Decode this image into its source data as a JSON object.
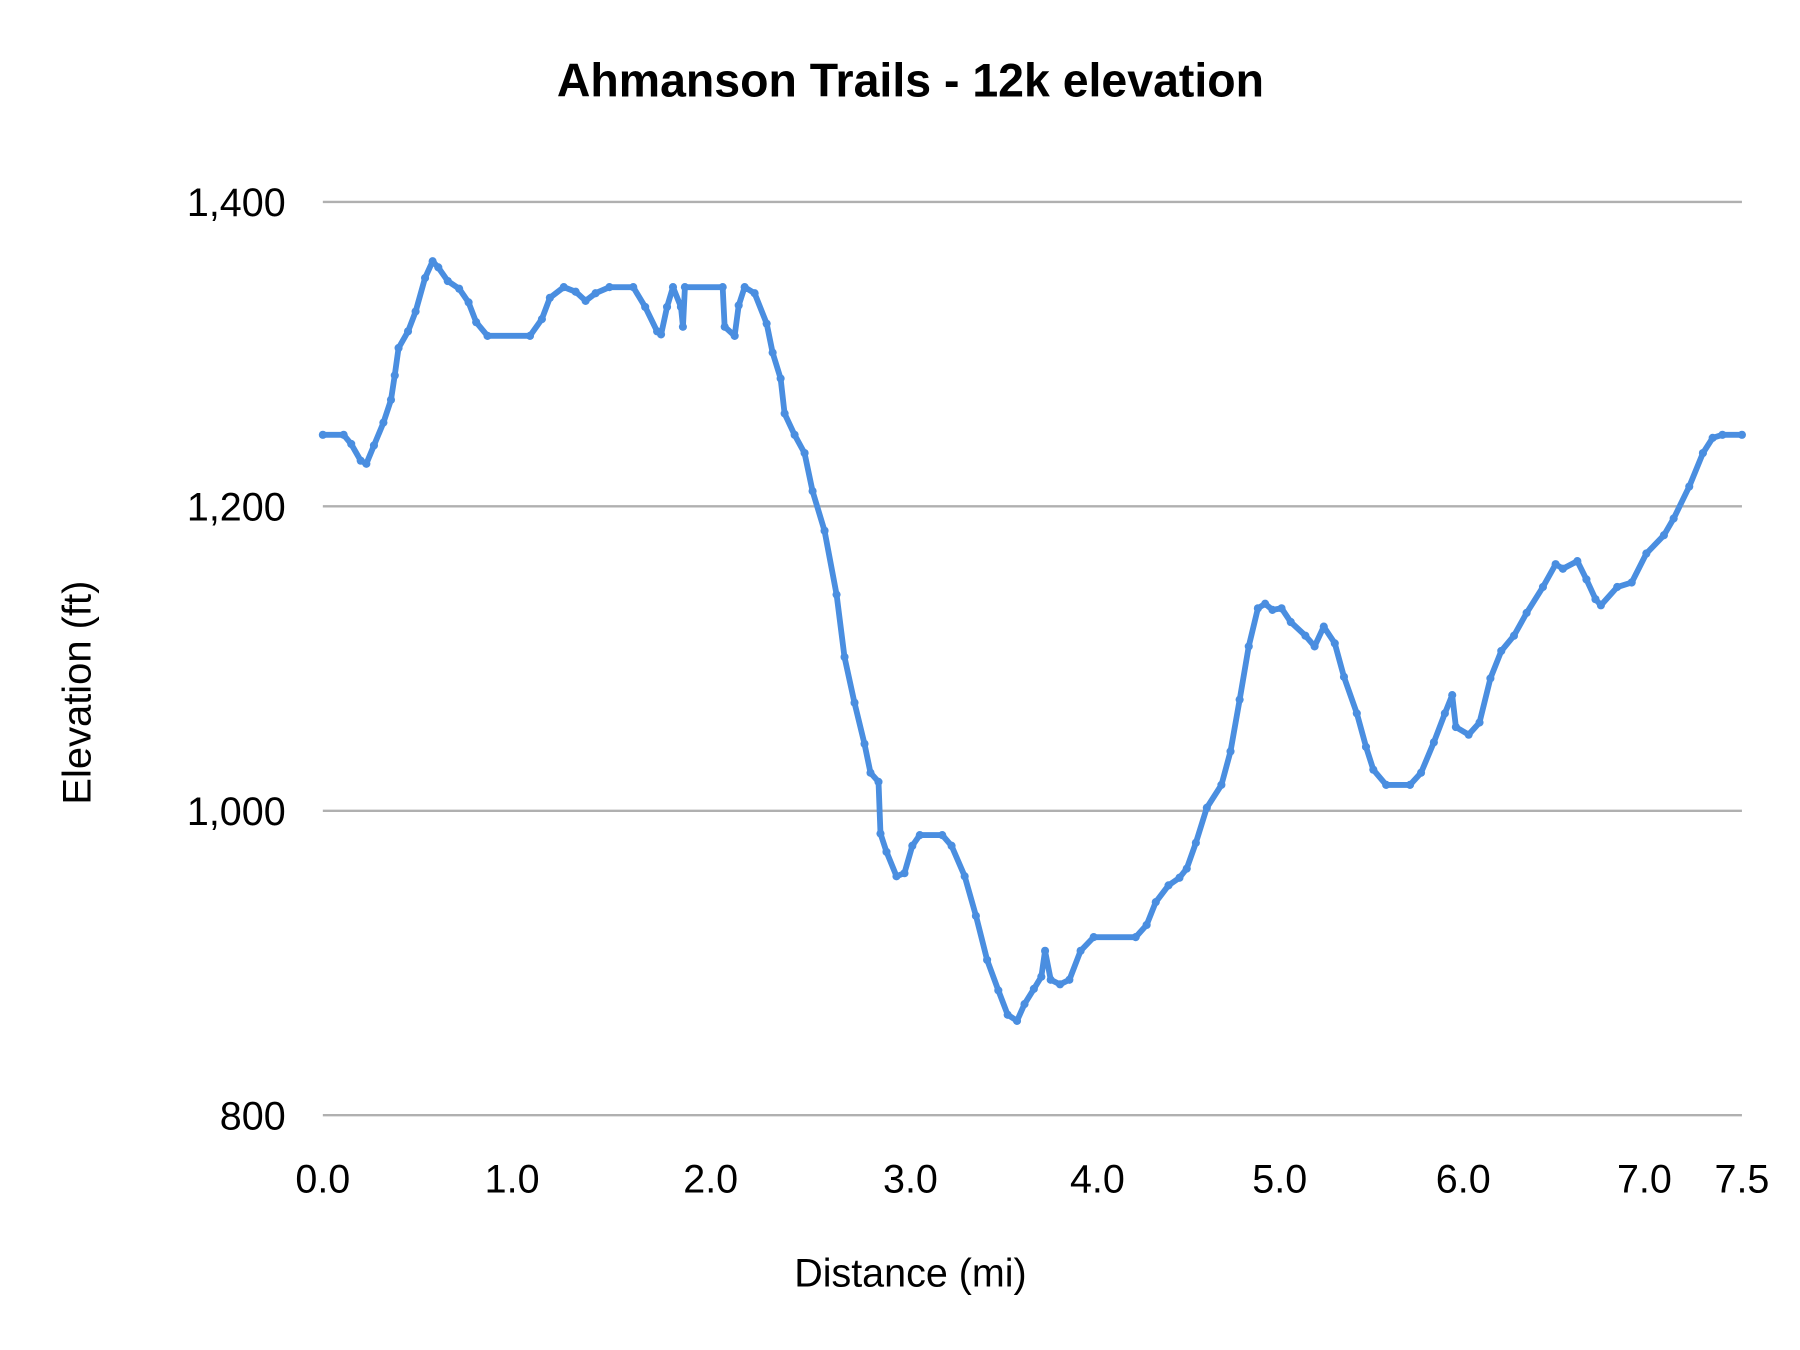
{
  "chart_data": {
    "type": "line",
    "title": "Ahmanson Trails - 12k elevation",
    "xlabel": "Distance (mi)",
    "ylabel": "Elevation (ft)",
    "xlim": [
      0,
      7.5
    ],
    "ylim": [
      800,
      1400
    ],
    "x_ticks": [
      "0.0",
      "1.0",
      "2.0",
      "3.0",
      "4.0",
      "5.0",
      "6.0",
      "7.0",
      "7.5"
    ],
    "y_ticks": [
      "800",
      "1,000",
      "1,200",
      "1,400"
    ],
    "y_tick_values": [
      800,
      1000,
      1200,
      1400
    ],
    "grid": true,
    "legend": "none",
    "series_color": "#4a8ee0",
    "x": [
      0.0,
      0.11,
      0.15,
      0.2,
      0.23,
      0.27,
      0.32,
      0.36,
      0.38,
      0.4,
      0.45,
      0.49,
      0.54,
      0.58,
      0.61,
      0.66,
      0.72,
      0.77,
      0.81,
      0.87,
      1.09,
      1.15,
      1.19,
      1.26,
      1.32,
      1.37,
      1.42,
      1.49,
      1.61,
      1.67,
      1.73,
      1.75,
      1.78,
      1.81,
      1.85,
      1.86,
      1.87,
      2.06,
      2.07,
      2.12,
      2.14,
      2.17,
      2.22,
      2.28,
      2.31,
      2.35,
      2.37,
      2.42,
      2.47,
      2.51,
      2.57,
      2.63,
      2.67,
      2.72,
      2.77,
      2.8,
      2.84,
      2.85,
      2.88,
      2.93,
      2.97,
      3.01,
      3.05,
      3.17,
      3.22,
      3.29,
      3.35,
      3.41,
      3.47,
      3.52,
      3.57,
      3.61,
      3.66,
      3.7,
      3.72,
      3.75,
      3.8,
      3.85,
      3.91,
      3.98,
      4.21,
      4.27,
      4.32,
      4.39,
      4.45,
      4.49,
      4.54,
      4.6,
      4.68,
      4.73,
      4.78,
      4.83,
      4.88,
      4.92,
      4.96,
      5.01,
      5.06,
      5.14,
      5.19,
      5.24,
      5.3,
      5.35,
      5.42,
      5.47,
      5.51,
      5.58,
      5.71,
      5.77,
      5.84,
      5.9,
      5.94,
      5.96,
      6.03,
      6.09,
      6.15,
      6.21,
      6.28,
      6.35,
      6.44,
      6.51,
      6.55,
      6.63,
      6.68,
      6.73,
      6.76,
      6.85,
      6.93,
      7.01,
      7.1,
      7.15,
      7.23,
      7.3,
      7.35,
      7.4,
      7.5
    ],
    "values": [
      1247,
      1247,
      1241,
      1230,
      1228,
      1240,
      1255,
      1270,
      1286,
      1304,
      1315,
      1328,
      1350,
      1361,
      1357,
      1348,
      1343,
      1334,
      1321,
      1312,
      1312,
      1323,
      1337,
      1344,
      1341,
      1335,
      1340,
      1344,
      1344,
      1331,
      1315,
      1313,
      1331,
      1344,
      1331,
      1318,
      1344,
      1344,
      1318,
      1312,
      1332,
      1344,
      1340,
      1320,
      1301,
      1284,
      1261,
      1247,
      1235,
      1210,
      1184,
      1142,
      1101,
      1071,
      1044,
      1025,
      1019,
      985,
      973,
      957,
      959,
      977,
      984,
      984,
      977,
      957,
      931,
      902,
      882,
      866,
      862,
      873,
      883,
      891,
      908,
      889,
      886,
      889,
      908,
      917,
      917,
      925,
      940,
      951,
      956,
      962,
      979,
      1002,
      1017,
      1039,
      1073,
      1108,
      1133,
      1136,
      1132,
      1133,
      1124,
      1115,
      1108,
      1121,
      1110,
      1088,
      1064,
      1042,
      1027,
      1017,
      1017,
      1025,
      1045,
      1064,
      1076,
      1055,
      1050,
      1058,
      1087,
      1105,
      1115,
      1130,
      1147,
      1162,
      1159,
      1164,
      1152,
      1139,
      1135,
      1147,
      1150,
      1169,
      1181,
      1192,
      1213,
      1235,
      1245,
      1247,
      1247
    ]
  }
}
